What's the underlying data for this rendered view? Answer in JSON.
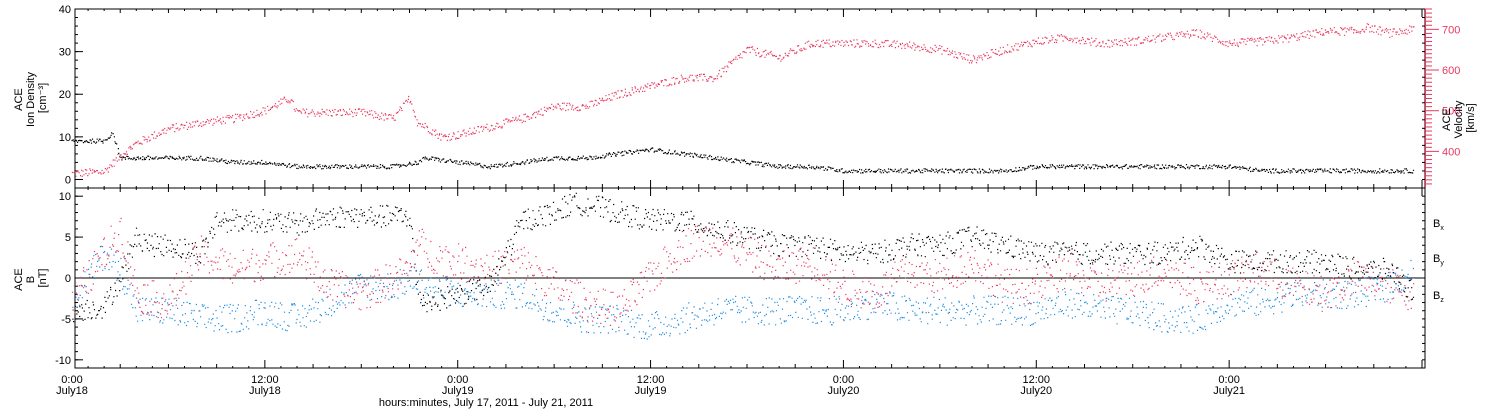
{
  "chart_data": [
    {
      "type": "scatter",
      "panel": "top",
      "left_axis": {
        "label_lines": [
          "ACE",
          "Ion Density",
          "[cm⁻³]"
        ],
        "range": [
          -2,
          40
        ],
        "ticks": [
          0,
          10,
          20,
          30,
          40
        ]
      },
      "right_axis": {
        "label_lines": [
          "ACE",
          "Velocity",
          "[km/s]"
        ],
        "range": [
          310,
          750
        ],
        "ticks": [
          400,
          500,
          600,
          700
        ]
      },
      "x_range_hours": [
        0,
        84
      ],
      "series": [
        {
          "axis": "left",
          "color": "#000000",
          "x": [
            0,
            1,
            2,
            2.5,
            3,
            4,
            6,
            8,
            10,
            12,
            14,
            16,
            18,
            20,
            21.5,
            22,
            24,
            26,
            28,
            30,
            32,
            34,
            36,
            38,
            40,
            42,
            44,
            46,
            48,
            50,
            52,
            54,
            56,
            58,
            60,
            62,
            64,
            66,
            68,
            70,
            72,
            74,
            76,
            78,
            80,
            82,
            83.5
          ],
          "values": [
            9,
            9,
            9,
            11,
            5,
            5,
            5,
            5,
            4,
            4,
            3,
            3,
            3,
            3,
            4,
            5,
            4,
            3,
            4,
            5,
            5,
            6,
            7,
            6,
            5,
            4,
            3,
            3,
            2,
            2,
            2,
            2,
            2,
            2,
            3,
            3,
            3,
            3,
            3,
            3,
            3,
            2,
            2,
            2,
            2,
            2,
            2
          ]
        },
        {
          "axis": "right",
          "color": "#e8385e",
          "x": [
            0,
            2,
            3,
            4,
            6,
            8,
            10,
            12,
            13.5,
            14,
            16,
            18,
            20,
            21,
            21.5,
            22,
            23,
            24,
            26,
            28,
            30,
            32,
            34,
            36,
            38,
            40,
            42,
            44,
            46,
            48,
            50,
            52,
            54,
            56,
            58,
            60,
            62,
            64,
            66,
            68,
            70,
            72,
            74,
            76,
            78,
            80,
            80.5,
            82,
            83.5
          ],
          "values": [
            345,
            350,
            390,
            420,
            455,
            470,
            480,
            500,
            530,
            495,
            495,
            495,
            480,
            530,
            470,
            460,
            435,
            440,
            460,
            480,
            510,
            510,
            540,
            560,
            580,
            580,
            650,
            630,
            665,
            665,
            665,
            660,
            650,
            625,
            650,
            670,
            680,
            665,
            670,
            680,
            690,
            665,
            670,
            680,
            695,
            695,
            705,
            690,
            700
          ]
        }
      ]
    },
    {
      "type": "scatter",
      "panel": "bottom",
      "left_axis": {
        "label_lines": [
          "ACE",
          "B",
          "[nT]"
        ],
        "range": [
          -11,
          11
        ],
        "ticks": [
          -10,
          -5,
          0,
          5,
          10
        ]
      },
      "x_range_hours": [
        0,
        84
      ],
      "zero_line": true,
      "legend": [
        "Bx",
        "By",
        "Bz"
      ],
      "series": [
        {
          "name": "Bx",
          "color": "#000000",
          "x": [
            0,
            2,
            3,
            4,
            5,
            6,
            8,
            9,
            10,
            12,
            14,
            16,
            18,
            20,
            21,
            21.5,
            22,
            24,
            26,
            28,
            30,
            31,
            32,
            34,
            36,
            38,
            40,
            42,
            44,
            46,
            48,
            50,
            52,
            54,
            56,
            58,
            60,
            62,
            64,
            66,
            68,
            70,
            72,
            74,
            76,
            78,
            80,
            82,
            83.5
          ],
          "values": [
            -4,
            -3.5,
            0,
            5,
            4,
            4,
            3,
            7,
            7,
            7,
            6.5,
            7.5,
            7.5,
            7.5,
            7.5,
            -2,
            -3,
            -2,
            -1,
            7,
            8,
            9,
            9,
            8,
            7,
            7,
            6,
            5,
            4,
            4,
            3,
            3,
            4,
            4,
            5,
            4,
            3,
            3,
            3,
            3,
            3,
            4,
            2,
            2,
            2,
            2,
            1,
            1,
            -2
          ]
        },
        {
          "name": "By",
          "color": "#1f8ce0",
          "x": [
            0,
            2,
            3,
            4,
            6,
            8,
            10,
            12,
            14,
            16,
            18,
            20,
            21.5,
            22,
            24,
            26,
            28,
            30,
            32,
            34,
            36,
            38,
            40,
            42,
            44,
            46,
            48,
            50,
            52,
            54,
            56,
            58,
            60,
            62,
            64,
            66,
            68,
            70,
            72,
            74,
            76,
            78,
            80,
            82,
            83.5
          ],
          "values": [
            -3,
            3,
            1,
            -4,
            -4,
            -5,
            -5,
            -4,
            -5,
            -3,
            -1,
            -1,
            0,
            -1,
            -2,
            -2,
            -2,
            -4,
            -5,
            -5,
            -6,
            -5,
            -4,
            -4,
            -4,
            -4,
            -4,
            -3,
            -4,
            -4,
            -4,
            -4,
            -4,
            -3,
            -4,
            -4,
            -5,
            -5,
            -3,
            -3,
            -2,
            -2,
            -2,
            -1,
            1
          ]
        },
        {
          "name": "Bz",
          "color": "#e8385e",
          "x": [
            0,
            1,
            2,
            3,
            4,
            6,
            8,
            10,
            12,
            14,
            16,
            18,
            20,
            21,
            21.5,
            22,
            24,
            26,
            28,
            30,
            32,
            34,
            36,
            38,
            40,
            42,
            44,
            46,
            48,
            50,
            52,
            54,
            56,
            58,
            60,
            62,
            64,
            66,
            68,
            70,
            72,
            74,
            76,
            78,
            80,
            82,
            83.5
          ],
          "values": [
            -3,
            0,
            3,
            6,
            -2,
            -3,
            3,
            1,
            2,
            3,
            -1,
            -2,
            0,
            1,
            5,
            3,
            2,
            1,
            2,
            -1,
            -3,
            -4,
            0,
            4,
            5,
            3,
            1,
            2,
            -1,
            -2,
            1,
            0,
            2,
            -1,
            -1,
            1,
            -1,
            0,
            1,
            -1,
            0,
            1,
            -1,
            -2,
            0,
            -1,
            -2
          ]
        }
      ]
    }
  ],
  "x_axis": {
    "tick_labels": [
      {
        "hour": 0,
        "time": "0:00",
        "date": "July18"
      },
      {
        "hour": 12,
        "time": "12:00",
        "date": "July18"
      },
      {
        "hour": 24,
        "time": "0:00",
        "date": "July19"
      },
      {
        "hour": 36,
        "time": "12:00",
        "date": "July19"
      },
      {
        "hour": 48,
        "time": "0:00",
        "date": "July20"
      },
      {
        "hour": 60,
        "time": "12:00",
        "date": "July20"
      },
      {
        "hour": 72,
        "time": "0:00",
        "date": "July21"
      }
    ],
    "title": "hours:minutes, July 17, 2011 - July 21, 2011"
  },
  "legend_labels": {
    "bx": {
      "base": "B",
      "sub": "x"
    },
    "by": {
      "base": "B",
      "sub": "y"
    },
    "bz": {
      "base": "B",
      "sub": "z"
    }
  },
  "colors": {
    "black": "#000000",
    "blue": "#1f8ce0",
    "red": "#e8385e"
  }
}
